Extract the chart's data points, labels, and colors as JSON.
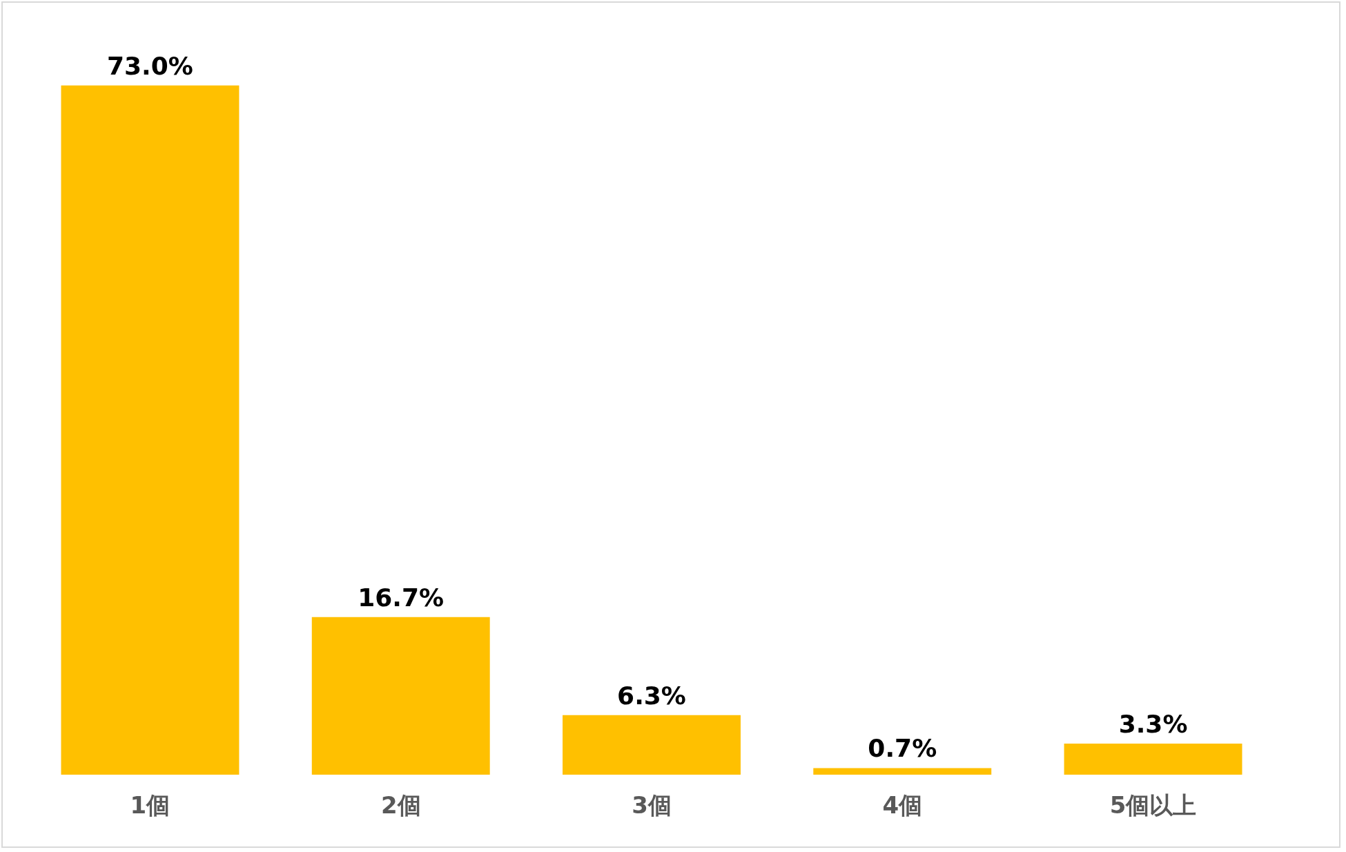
{
  "chart_data": {
    "type": "bar",
    "categories": [
      "1個",
      "2個",
      "3個",
      "4個",
      "5個以上"
    ],
    "values": [
      73.0,
      16.7,
      6.3,
      0.7,
      3.3
    ],
    "value_labels": [
      "73.0%",
      "16.7%",
      "6.3%",
      "0.7%",
      "3.3%"
    ],
    "color": "#ffc000"
  }
}
